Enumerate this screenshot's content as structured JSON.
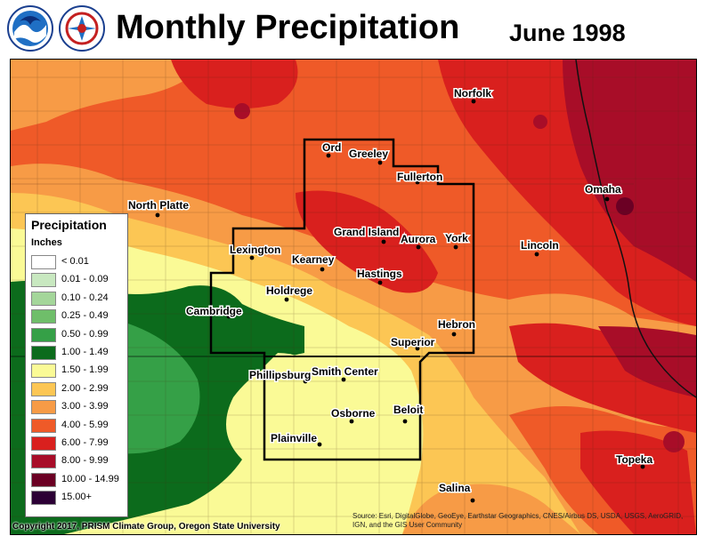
{
  "header": {
    "title": "Monthly Precipitation",
    "date": "June 1998"
  },
  "logos": [
    {
      "icon": "noaa-logo-icon"
    },
    {
      "icon": "nws-logo-icon"
    }
  ],
  "legend": {
    "title": "Precipitation",
    "units": "Inches",
    "items": [
      {
        "label": "< 0.01",
        "color": "#ffffff"
      },
      {
        "label": "0.01 - 0.09",
        "color": "#c8e8c0"
      },
      {
        "label": "0.10 - 0.24",
        "color": "#a4d69a"
      },
      {
        "label": "0.25 - 0.49",
        "color": "#6fbe6a"
      },
      {
        "label": "0.50 - 0.99",
        "color": "#35a047"
      },
      {
        "label": "1.00 - 1.49",
        "color": "#0c6b1c"
      },
      {
        "label": "1.50 - 1.99",
        "color": "#fafa96"
      },
      {
        "label": "2.00 - 2.99",
        "color": "#fcc654"
      },
      {
        "label": "3.00 - 3.99",
        "color": "#f79b46"
      },
      {
        "label": "4.00 - 5.99",
        "color": "#ef5a28"
      },
      {
        "label": "6.00 - 7.99",
        "color": "#d9201e"
      },
      {
        "label": "8.00 - 9.99",
        "color": "#a80d28"
      },
      {
        "label": "10.00 - 14.99",
        "color": "#6b0024"
      },
      {
        "label": "15.00+",
        "color": "#2c0035"
      }
    ]
  },
  "cities": [
    {
      "name": "Norfolk"
    },
    {
      "name": "Ord"
    },
    {
      "name": "Greeley"
    },
    {
      "name": "Fullerton"
    },
    {
      "name": "Omaha"
    },
    {
      "name": "North Platte"
    },
    {
      "name": "Grand Island"
    },
    {
      "name": "Aurora"
    },
    {
      "name": "York"
    },
    {
      "name": "Lincoln"
    },
    {
      "name": "Lexington"
    },
    {
      "name": "Kearney"
    },
    {
      "name": "Hastings"
    },
    {
      "name": "Holdrege"
    },
    {
      "name": "Cambridge"
    },
    {
      "name": "Hebron"
    },
    {
      "name": "Superior"
    },
    {
      "name": "Phillipsburg"
    },
    {
      "name": "Smith Center"
    },
    {
      "name": "Osborne"
    },
    {
      "name": "Beloit"
    },
    {
      "name": "Plainville"
    },
    {
      "name": "Topeka"
    },
    {
      "name": "Salina"
    }
  ],
  "footer": {
    "copyright": "Copyright 2017, PRISM Climate Group, Oregon State University",
    "source_line1": "Source: Esri, DigitalGlobe, GeoEye, Earthstar Geographics, CNES/Airbus DS, USDA, USGS, AeroGRID,",
    "source_line2": "IGN, and the GIS User Community"
  }
}
